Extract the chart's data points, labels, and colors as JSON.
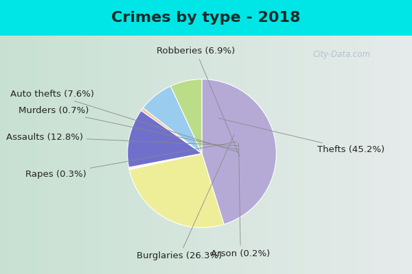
{
  "title": "Crimes by type - 2018",
  "labels": [
    "Thefts",
    "Burglaries",
    "Arson",
    "Rapes",
    "Assaults",
    "Murders",
    "Auto thefts",
    "Robberies"
  ],
  "display_labels": [
    "Thefts (45.2%)",
    "Burglaries (26.3%)",
    "Arson (0.2%)",
    "Rapes (0.3%)",
    "Assaults (12.8%)",
    "Murders (0.7%)",
    "Auto thefts (7.6%)",
    "Robberies (6.9%)"
  ],
  "values": [
    45.2,
    26.3,
    0.2,
    0.3,
    12.8,
    0.7,
    7.6,
    6.9
  ],
  "colors": [
    "#b5aad6",
    "#eeee99",
    "#f8f8bb",
    "#ffdddd",
    "#7070cc",
    "#f5c8a0",
    "#99ccee",
    "#bbdd88"
  ],
  "background_cyan": "#00e5e5",
  "title_fontsize": 16,
  "label_fontsize": 9.5,
  "startangle": 90
}
